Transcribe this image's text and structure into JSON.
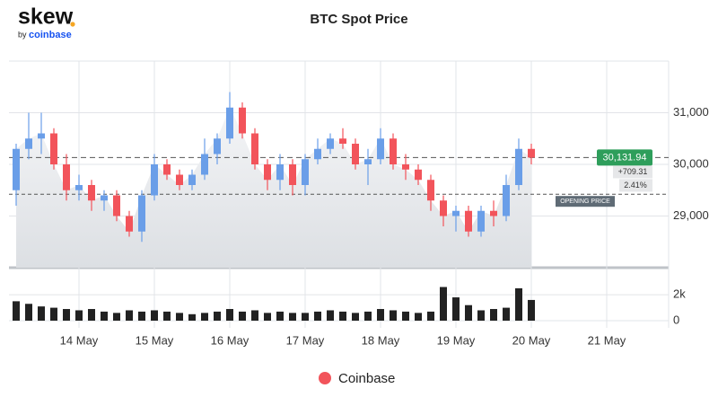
{
  "brand": {
    "name": "skew",
    "by": "by",
    "partner": "coinbase"
  },
  "chart_data": {
    "type": "candlestick",
    "title": "BTC Spot Price",
    "categories": [
      null,
      null,
      null,
      null,
      null,
      null,
      "14 May",
      null,
      null,
      null,
      null,
      null,
      "15 May",
      null,
      null,
      null,
      null,
      null,
      "16 May",
      null,
      null,
      null,
      null,
      null,
      "17 May",
      null,
      null,
      null,
      null,
      null,
      "18 May",
      null,
      null,
      null,
      null,
      null,
      "19 May",
      null,
      null,
      null,
      null,
      null,
      "20 May",
      null,
      null,
      null,
      null,
      null,
      "21 May",
      null,
      null,
      null,
      null
    ],
    "series": [
      {
        "name": "Coinbase",
        "color": "#f2545b",
        "up_color": "#6a9ee8",
        "open": [
          null,
          29500,
          30300,
          30500,
          30600,
          30000,
          29500,
          29600,
          29300,
          29400,
          29000,
          28700,
          29400,
          30000,
          29800,
          29600,
          29800,
          30200,
          30500,
          31100,
          30600,
          30000,
          29700,
          30000,
          29600,
          30100,
          30300,
          30500,
          30400,
          30000,
          30100,
          30500,
          30000,
          29900,
          29700,
          29300,
          29000,
          29100,
          28700,
          29100,
          29000,
          29600,
          30300,
          null,
          null,
          null,
          null,
          null,
          null,
          null,
          null,
          null,
          null
        ],
        "high": [
          null,
          30400,
          31000,
          31000,
          30700,
          30200,
          29800,
          29700,
          29500,
          29500,
          29100,
          29500,
          30200,
          30100,
          29900,
          29900,
          30500,
          30600,
          31400,
          31200,
          30700,
          30100,
          30200,
          30100,
          30200,
          30500,
          30600,
          30700,
          30500,
          30300,
          30700,
          30600,
          30200,
          30000,
          29800,
          29400,
          29200,
          29200,
          29200,
          29300,
          29800,
          30500,
          30400,
          null,
          null,
          null,
          null,
          null,
          null,
          null,
          null,
          null,
          null
        ],
        "low": [
          null,
          29200,
          30100,
          30200,
          29900,
          29300,
          29300,
          29100,
          29100,
          28900,
          28600,
          28500,
          29300,
          29700,
          29500,
          29500,
          29700,
          30000,
          30400,
          30500,
          29900,
          29500,
          29500,
          29400,
          29400,
          30000,
          30200,
          30300,
          29900,
          29600,
          30000,
          29900,
          29700,
          29600,
          29100,
          28800,
          28700,
          28600,
          28600,
          28800,
          28900,
          29500,
          30000,
          null,
          null,
          null,
          null,
          null,
          null,
          null,
          null,
          null,
          null
        ],
        "close": [
          null,
          30300,
          30500,
          30600,
          30000,
          29500,
          29600,
          29300,
          29400,
          29000,
          28700,
          29400,
          30000,
          29800,
          29600,
          29800,
          30200,
          30500,
          31100,
          30600,
          30000,
          29700,
          30000,
          29600,
          30100,
          30300,
          30500,
          30400,
          30000,
          30100,
          30500,
          30000,
          29900,
          29700,
          29300,
          29000,
          29100,
          28700,
          29100,
          29000,
          29600,
          30300,
          30131.94,
          null,
          null,
          null,
          null,
          null,
          null,
          null,
          null,
          null,
          null
        ],
        "volume": [
          null,
          1500,
          1300,
          1100,
          1000,
          900,
          800,
          900,
          700,
          600,
          800,
          700,
          800,
          700,
          600,
          500,
          600,
          700,
          900,
          700,
          800,
          600,
          700,
          600,
          600,
          700,
          800,
          700,
          600,
          700,
          900,
          800,
          700,
          600,
          700,
          2600,
          1800,
          1200,
          800,
          900,
          1000,
          2500,
          1600,
          null,
          null,
          null,
          null,
          null,
          null,
          null,
          null,
          null,
          null
        ]
      }
    ],
    "ylim": [
      28000,
      32000
    ],
    "yticks": [
      {
        "value": 29000,
        "label": "29,000"
      },
      {
        "value": 30000,
        "label": "30,000"
      },
      {
        "value": 31000,
        "label": "31,000"
      }
    ],
    "volume_ylim": [
      0,
      3400
    ],
    "volume_yticks": [
      0,
      {
        "value": 2000,
        "label": "2k"
      }
    ],
    "last_price": {
      "value": 30131.94,
      "label": "30,131.94"
    },
    "price_change": {
      "value": 709.31,
      "label": "+709.31"
    },
    "price_change_pct": {
      "value": 2.41,
      "label": "2.41%"
    },
    "opening_price": {
      "value": 29422.63,
      "label": "OPENING PRICE"
    },
    "grid": true
  }
}
